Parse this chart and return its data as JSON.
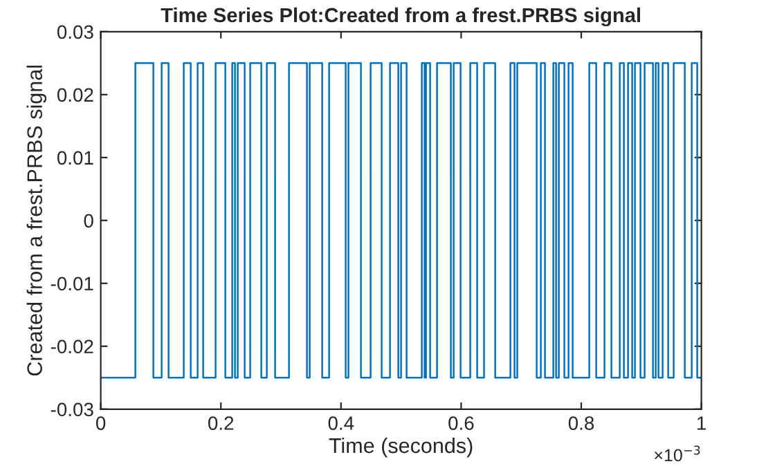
{
  "chart_data": {
    "type": "step",
    "title": "Time Series Plot:Created from a frest.PRBS signal",
    "xlabel": "Time (seconds)",
    "ylabel": "Created from a frest.PRBS signal",
    "series": [
      {
        "color": "#0072bd",
        "x": [
          0,
          0.0576,
          0.0876,
          0.1014,
          0.1129,
          0.1382,
          0.1498,
          0.1613,
          0.1705,
          0.1912,
          0.2074,
          0.2189,
          0.2235,
          0.2281,
          0.2396,
          0.2488,
          0.2673,
          0.2765,
          0.2903,
          0.3134,
          0.3433,
          0.3479,
          0.3687,
          0.3802,
          0.4078,
          0.4124,
          0.4332,
          0.4493,
          0.4677,
          0.4816,
          0.4954,
          0.5,
          0.5092,
          0.5346,
          0.5392,
          0.5415,
          0.5484,
          0.5599,
          0.5829,
          0.5876,
          0.5991,
          0.6152,
          0.6267,
          0.6382,
          0.6567,
          0.682,
          0.6889,
          0.6935,
          0.7258,
          0.7327,
          0.7396,
          0.7535,
          0.7581,
          0.7627,
          0.7719,
          0.7788,
          0.7857,
          0.8134,
          0.8249,
          0.8387,
          0.8502,
          0.8641,
          0.871,
          0.8779,
          0.8848,
          0.8894,
          0.8986,
          0.9055,
          0.9194,
          0.924,
          0.9286,
          0.9355,
          0.9447,
          0.9539,
          0.9724,
          0.9839,
          0.9931,
          1.0
        ],
        "values": [
          -0.025,
          0.025,
          -0.025,
          0.025,
          -0.025,
          0.025,
          -0.025,
          0.025,
          -0.025,
          0.025,
          -0.025,
          0.025,
          -0.025,
          0.025,
          -0.025,
          0.025,
          -0.025,
          0.025,
          -0.025,
          0.025,
          -0.025,
          0.025,
          -0.025,
          0.025,
          -0.025,
          0.025,
          -0.025,
          0.025,
          -0.025,
          0.025,
          -0.025,
          0.025,
          -0.025,
          0.025,
          -0.025,
          0.025,
          -0.025,
          0.025,
          -0.025,
          0.025,
          -0.025,
          0.025,
          -0.025,
          0.025,
          -0.025,
          0.025,
          -0.025,
          0.025,
          -0.025,
          0.025,
          -0.025,
          0.025,
          -0.025,
          0.025,
          -0.025,
          0.025,
          -0.025,
          0.025,
          -0.025,
          0.025,
          -0.025,
          0.025,
          -0.025,
          0.025,
          -0.025,
          0.025,
          -0.025,
          0.025,
          -0.025,
          0.025,
          -0.025,
          0.025,
          -0.025,
          0.025,
          -0.025,
          0.025,
          -0.025,
          -0.025
        ]
      }
    ],
    "xlim": [
      0,
      1
    ],
    "xticks": [
      0,
      0.2,
      0.4,
      0.6,
      0.8,
      1
    ],
    "ylim": [
      -0.03,
      0.03
    ],
    "yticks": [
      -0.03,
      -0.02,
      -0.01,
      0,
      0.01,
      0.02,
      0.03
    ],
    "annotations": [
      "×10$^{−3}$"
    ]
  }
}
